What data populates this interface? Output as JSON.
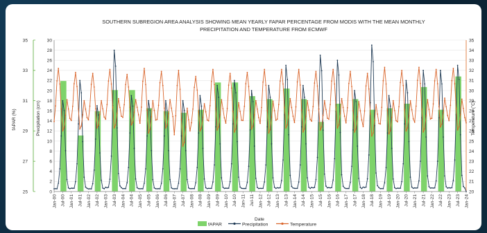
{
  "chart_data": {
    "type": "bar+line",
    "title_line1": "SOUTHERN SUBREGION AREA ANALYSIS SHOWING MEAN YEARLY FAPAR PERCENTAGE FROM MODIS WITH THE MEAN MONTHLY",
    "title_line2": "PRECIPITATION AND TEMPERATURE FROM ECMWF",
    "xlabel": "Date",
    "ylabel_left": "fAPAR (%)",
    "ylabel_mid": "Precipitation (cm)",
    "ylabel_right": "Temperature (˚C)",
    "fapar_ylim": [
      25,
      35
    ],
    "fapar_ticks": [
      25,
      27,
      29,
      31,
      33,
      35
    ],
    "precip_ylim": [
      0,
      30
    ],
    "precip_ticks": [
      0,
      2,
      4,
      6,
      8,
      10,
      12,
      14,
      16,
      18,
      20,
      22,
      24,
      26,
      28,
      30
    ],
    "temp_ylim": [
      20,
      35
    ],
    "temp_ticks": [
      20,
      21,
      22,
      23,
      24,
      25,
      26,
      27,
      28,
      29,
      30,
      31,
      32,
      33,
      34,
      35
    ],
    "x_tick_labels": [
      "Jan-00",
      "Jul-00",
      "Jan-01",
      "Jul-01",
      "Jan-02",
      "Jul-02",
      "Jan-03",
      "Jul-03",
      "Jan-04",
      "Jul-04",
      "Jan-05",
      "Jul-05",
      "Jan-06",
      "Jul-06",
      "Jan-07",
      "Jul-07",
      "Jan-08",
      "Jul-08",
      "Jan-09",
      "Jul-09",
      "Jan-10",
      "Jul-10",
      "Jan-11",
      "Jul-11",
      "Jan-12",
      "Jul-12",
      "Jan-13",
      "Jul-13",
      "Jan-14",
      "Jul-14",
      "Jan-15",
      "Jul-15",
      "Jan-16",
      "Jul-16",
      "Jan-17",
      "Jul-17",
      "Jan-18",
      "Jul-18",
      "Jan-19",
      "Jul-19",
      "Jan-20",
      "Jul-20",
      "Jan-21",
      "Jul-21",
      "Jan-22",
      "Jul-22",
      "Jan-23",
      "Jul-23",
      "Jan-24"
    ],
    "fapar_years": [
      2000,
      2001,
      2002,
      2003,
      2004,
      2005,
      2006,
      2007,
      2008,
      2009,
      2010,
      2011,
      2012,
      2013,
      2014,
      2015,
      2016,
      2017,
      2018,
      2019,
      2020,
      2021,
      2022,
      2023
    ],
    "fapar_values": [
      32.3,
      28.7,
      30.3,
      31.7,
      31.7,
      30.5,
      30.3,
      30.2,
      30.4,
      32.2,
      32.2,
      31.3,
      31.1,
      31.8,
      31.1,
      29.6,
      30.8,
      31.1,
      30.4,
      30.5,
      30.8,
      31.9,
      30.4,
      32.6
    ],
    "precip_annual_peak_cm": [
      18,
      22,
      17,
      28,
      19,
      18,
      18,
      18,
      19,
      21,
      22,
      20,
      21,
      25,
      21,
      27,
      26,
      20,
      29,
      19,
      22,
      24,
      24,
      25
    ],
    "temp_annual_max_c": [
      32.2,
      31.8,
      31.7,
      32.1,
      31.6,
      32.2,
      31.9,
      32.0,
      31.4,
      32.1,
      31.7,
      31.8,
      32.1,
      32.1,
      32.1,
      31.9,
      32.1,
      31.9,
      31.7,
      32.3,
      32.0,
      32.3,
      32.1,
      32.2
    ],
    "temp_annual_min_c": [
      26.0,
      26.2,
      26.3,
      26.3,
      26.6,
      25.8,
      26.3,
      24.5,
      26.0,
      26.1,
      25.9,
      26.2,
      25.8,
      26.3,
      25.9,
      26.1,
      26.3,
      25.9,
      25.5,
      25.7,
      26.0,
      25.9,
      26.4,
      26.1
    ],
    "legend": [
      "fAPAR",
      "Precipitation",
      "Temperature"
    ],
    "colors": {
      "fapar": "#7ed36a",
      "precipitation": "#1f3a54",
      "temperature": "#d9642a",
      "left_axis": "#68b04a",
      "right_axis": "#e07a3b"
    }
  }
}
